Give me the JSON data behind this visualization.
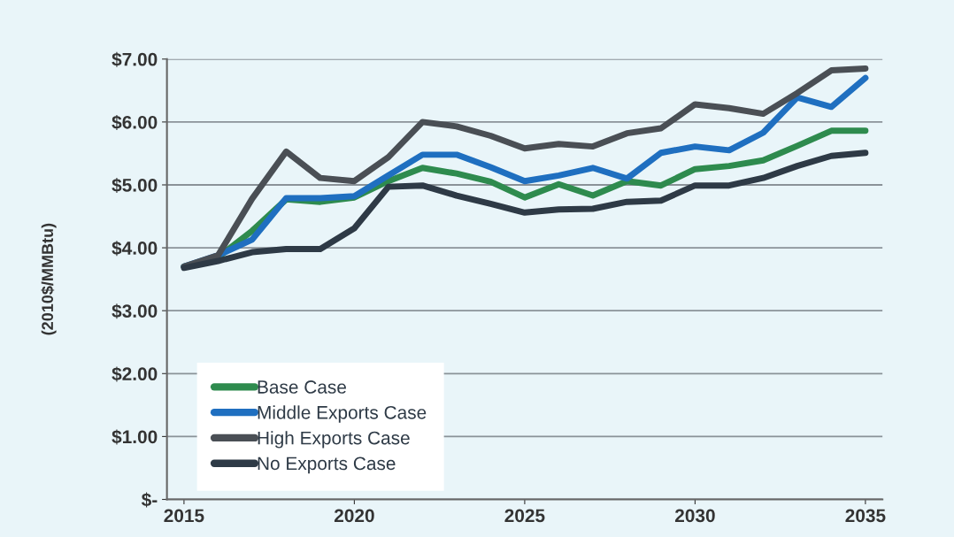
{
  "chart_data": {
    "type": "line",
    "ylabel": "(2010$/MMBtu)",
    "x": [
      2015,
      2016,
      2017,
      2018,
      2019,
      2020,
      2021,
      2022,
      2023,
      2024,
      2025,
      2026,
      2027,
      2028,
      2029,
      2030,
      2031,
      2032,
      2033,
      2034,
      2035
    ],
    "series": [
      {
        "name": "Base Case",
        "color": "#2e8b4e",
        "values": [
          3.7,
          3.85,
          4.27,
          4.77,
          4.73,
          4.8,
          5.06,
          5.27,
          5.18,
          5.05,
          4.8,
          5.01,
          4.83,
          5.06,
          4.99,
          5.25,
          5.3,
          5.39,
          5.62,
          5.86,
          5.86
        ]
      },
      {
        "name": "Middle Exports Case",
        "color": "#1f6fc0",
        "values": [
          3.7,
          3.88,
          4.13,
          4.79,
          4.79,
          4.82,
          5.15,
          5.48,
          5.48,
          5.28,
          5.06,
          5.15,
          5.27,
          5.1,
          5.51,
          5.61,
          5.55,
          5.83,
          6.39,
          6.24,
          6.7
        ]
      },
      {
        "name": "High Exports Case",
        "color": "#4a4f55",
        "values": [
          3.7,
          3.88,
          4.78,
          5.53,
          5.11,
          5.06,
          5.44,
          6.0,
          5.93,
          5.78,
          5.58,
          5.65,
          5.61,
          5.82,
          5.9,
          6.28,
          6.22,
          6.13,
          6.46,
          6.82,
          6.85
        ]
      },
      {
        "name": "No Exports Case",
        "color": "#2e3a46",
        "values": [
          3.68,
          3.79,
          3.93,
          3.98,
          3.98,
          4.31,
          4.97,
          4.99,
          4.83,
          4.7,
          4.56,
          4.61,
          4.62,
          4.73,
          4.75,
          4.99,
          4.99,
          5.11,
          5.3,
          5.46,
          5.51
        ]
      }
    ],
    "xlim": [
      2014.5,
      2035.5
    ],
    "xticks": [
      2015,
      2020,
      2025,
      2030,
      2035
    ],
    "ylim": [
      0,
      7
    ],
    "yticks": [
      {
        "value": 0,
        "label": "$-"
      },
      {
        "value": 1,
        "label": "$1.00"
      },
      {
        "value": 2,
        "label": "$2.00"
      },
      {
        "value": 3,
        "label": "$3.00"
      },
      {
        "value": 4,
        "label": "$4.00"
      },
      {
        "value": 5,
        "label": "$5.00"
      },
      {
        "value": 6,
        "label": "$6.00"
      },
      {
        "value": 7,
        "label": "$7.00"
      }
    ],
    "grid": "y",
    "legend": "bottom left",
    "marker": "none",
    "line_style": "solid"
  }
}
